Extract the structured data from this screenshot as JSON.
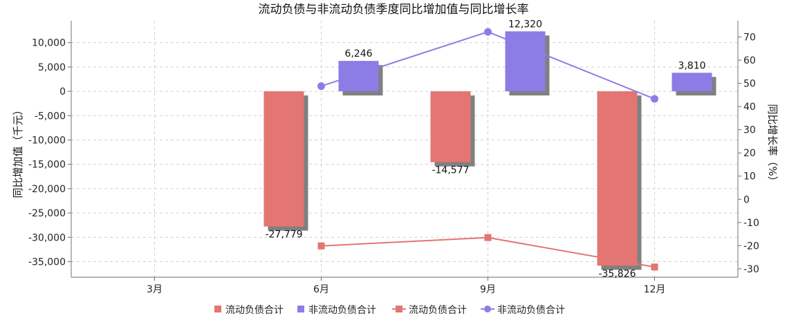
{
  "chart_data": {
    "type": "bar",
    "title": "流动负债与非流动负债季度同比增加值与同比增长率",
    "categories": [
      "3月",
      "6月",
      "9月",
      "12月"
    ],
    "ylabel_left": "同比增加值（千元）",
    "ylabel_right": "同比增长率（%）",
    "ylim_left": [
      -38200,
      14500
    ],
    "ylim_right": [
      -33.6,
      77
    ],
    "yticks_left": [
      10000,
      5000,
      0,
      -5000,
      -10000,
      -15000,
      -20000,
      -25000,
      -30000,
      -35000
    ],
    "yticks_left_labels": [
      "10,000",
      "5,000",
      "0",
      "-5,000",
      "-10,000",
      "-15,000",
      "-20,000",
      "-25,000",
      "-30,000",
      "-35,000"
    ],
    "yticks_right": [
      70,
      60,
      50,
      40,
      30,
      20,
      10,
      0,
      -10,
      -20,
      -30
    ],
    "yticks_right_labels": [
      "70",
      "60",
      "50",
      "40",
      "30",
      "20",
      "10",
      "0",
      "-10",
      "-20",
      "-30"
    ],
    "grid": true,
    "legend_position": "bottom-center",
    "bar_series": [
      {
        "name": "流动负债合计",
        "color": "#e37572",
        "values": [
          null,
          -27779,
          -14577,
          -35826
        ],
        "labels": [
          "",
          "-27,779",
          "-14,577",
          "-35,826"
        ]
      },
      {
        "name": "非流动负债合计",
        "color": "#8c7ce6",
        "values": [
          null,
          6246,
          12320,
          3810
        ],
        "labels": [
          "",
          "6,246",
          "12,320",
          "3,810"
        ]
      }
    ],
    "line_series": [
      {
        "name": "流动负债合计",
        "color": "#e37572",
        "marker": "square",
        "values": [
          null,
          -20.1,
          -16.5,
          -29.2
        ]
      },
      {
        "name": "非流动负债合计",
        "color": "#8c7ce6",
        "marker": "circle",
        "values": [
          null,
          48.8,
          72.2,
          43.3
        ]
      }
    ],
    "shadow_color": "#808080"
  }
}
